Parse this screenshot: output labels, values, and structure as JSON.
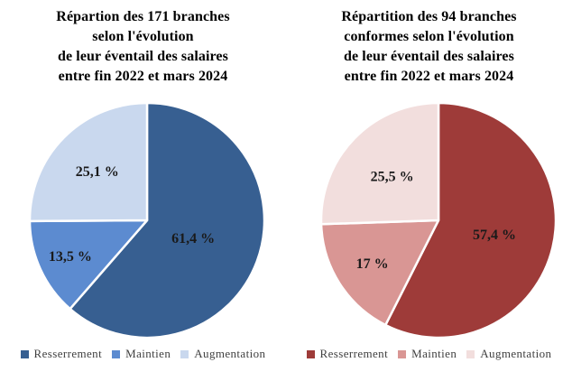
{
  "page": {
    "background": "#ffffff",
    "label_color": "#1a1a1a",
    "legend_text_color": "#404040"
  },
  "chart_data": [
    {
      "type": "pie",
      "title": "Répartion des 171 branches selon l'évolution de leur éventail des salaires entre fin 2022 et mars 2024",
      "title_lines": [
        "Répartion des 171 branches",
        "selon l'évolution",
        "de leur éventail des salaires",
        "entre fin 2022 et mars 2024"
      ],
      "start_angle_deg": 0,
      "direction": "clockwise",
      "legend_position": "bottom",
      "slices": [
        {
          "label": "Resserrement",
          "value": 61.4,
          "display": "61,4 %",
          "color": "#375F91",
          "label_radius": 0.42
        },
        {
          "label": "Maintien",
          "value": 13.5,
          "display": "13,5 %",
          "color": "#5C8BD0",
          "label_radius": 0.72
        },
        {
          "label": "Augmentation",
          "value": 25.1,
          "display": "25,1 %",
          "color": "#C9D8EE",
          "label_radius": 0.6
        }
      ]
    },
    {
      "type": "pie",
      "title": "Répartition des 94 branches conformes selon l'évolution de leur éventail des salaires entre fin 2022 et mars 2024",
      "title_lines": [
        "Répartition des 94 branches",
        "conformes selon l'évolution",
        "de leur éventail des salaires",
        "entre fin 2022 et mars 2024"
      ],
      "start_angle_deg": 0,
      "direction": "clockwise",
      "legend_position": "bottom",
      "slices": [
        {
          "label": "Resserrement",
          "value": 57.4,
          "display": "57,4 %",
          "color": "#9E3B39",
          "label_radius": 0.49
        },
        {
          "label": "Maintien",
          "value": 17.0,
          "display": "17 %",
          "color": "#D99694",
          "label_radius": 0.67
        },
        {
          "label": "Augmentation",
          "value": 25.5,
          "display": "25,5 %",
          "color": "#F2DEDD",
          "label_radius": 0.55
        }
      ]
    }
  ]
}
